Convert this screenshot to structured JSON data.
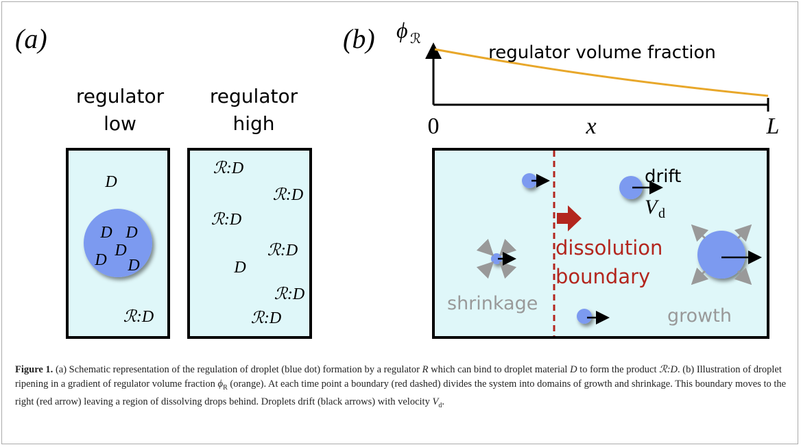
{
  "panel_a": {
    "label": "(a)",
    "left": {
      "heading": [
        "regulator",
        "low"
      ],
      "items": [
        "D",
        "ℛ:D"
      ],
      "droplet": [
        "D",
        "D",
        "D",
        "D",
        "D"
      ]
    },
    "right": {
      "heading": [
        "regulator",
        "high"
      ],
      "items": [
        "ℛ:D",
        "ℛ:D",
        "ℛ:D",
        "ℛ:D",
        "D",
        "ℛ:D",
        "ℛ:D"
      ]
    }
  },
  "panel_b": {
    "label": "(b)",
    "y_axis": {
      "symbol": "ϕ",
      "sub": "ℛ"
    },
    "curve_label": "regulator volume fraction",
    "x_axis": {
      "start": "0",
      "middle": "x",
      "end": "L"
    },
    "drift": "drift",
    "velocity": {
      "symbol": "V",
      "sub": "d"
    },
    "boundary": [
      "dissolution",
      "boundary"
    ],
    "shrinkage": "shrinkage",
    "growth": "growth"
  },
  "caption": {
    "label": "Figure 1.",
    "parts": [
      " (a) Schematic representation of the regulation of droplet (blue dot) formation by a regulator ",
      "R",
      " which can bind to droplet material ",
      "D",
      " to form the product ",
      "ℛ:D",
      ". (b) Illustration of droplet ripening in a gradient of regulator volume fraction ",
      "ϕ",
      "R",
      " (orange). At each time point a boundary (red dashed) divides the system into domains of growth and shrinkage. This boundary moves to the right (red arrow) leaving a region of dissolving drops behind. Droplets drift (black arrows) with velocity ",
      "V",
      "d",
      "."
    ]
  }
}
